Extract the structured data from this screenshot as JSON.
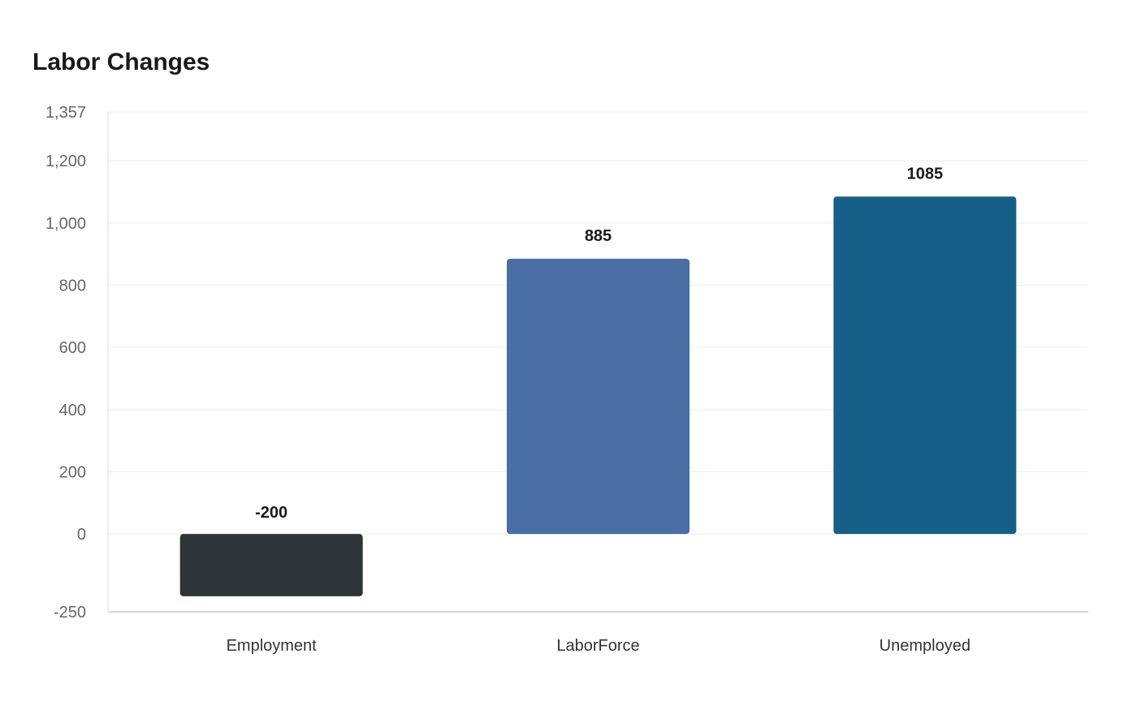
{
  "chart_data": {
    "type": "bar",
    "title": "Labor Changes",
    "categories": [
      "Employment",
      "LaborForce",
      "Unemployed"
    ],
    "values": [
      -200,
      885,
      1085
    ],
    "data_labels": [
      "-200",
      "885",
      "1085"
    ],
    "colors": [
      "#2d3436",
      "#4a6fa5",
      "#166088"
    ],
    "xlabel": "",
    "ylabel": "",
    "ylim": [
      -250,
      1357
    ],
    "yticks": [
      -250,
      0,
      200,
      400,
      600,
      800,
      1000,
      1200,
      1357
    ],
    "ytick_labels": [
      "-250",
      "0",
      "200",
      "400",
      "600",
      "800",
      "1,000",
      "1,200",
      "1,357"
    ],
    "grid": true,
    "legend": "none"
  }
}
